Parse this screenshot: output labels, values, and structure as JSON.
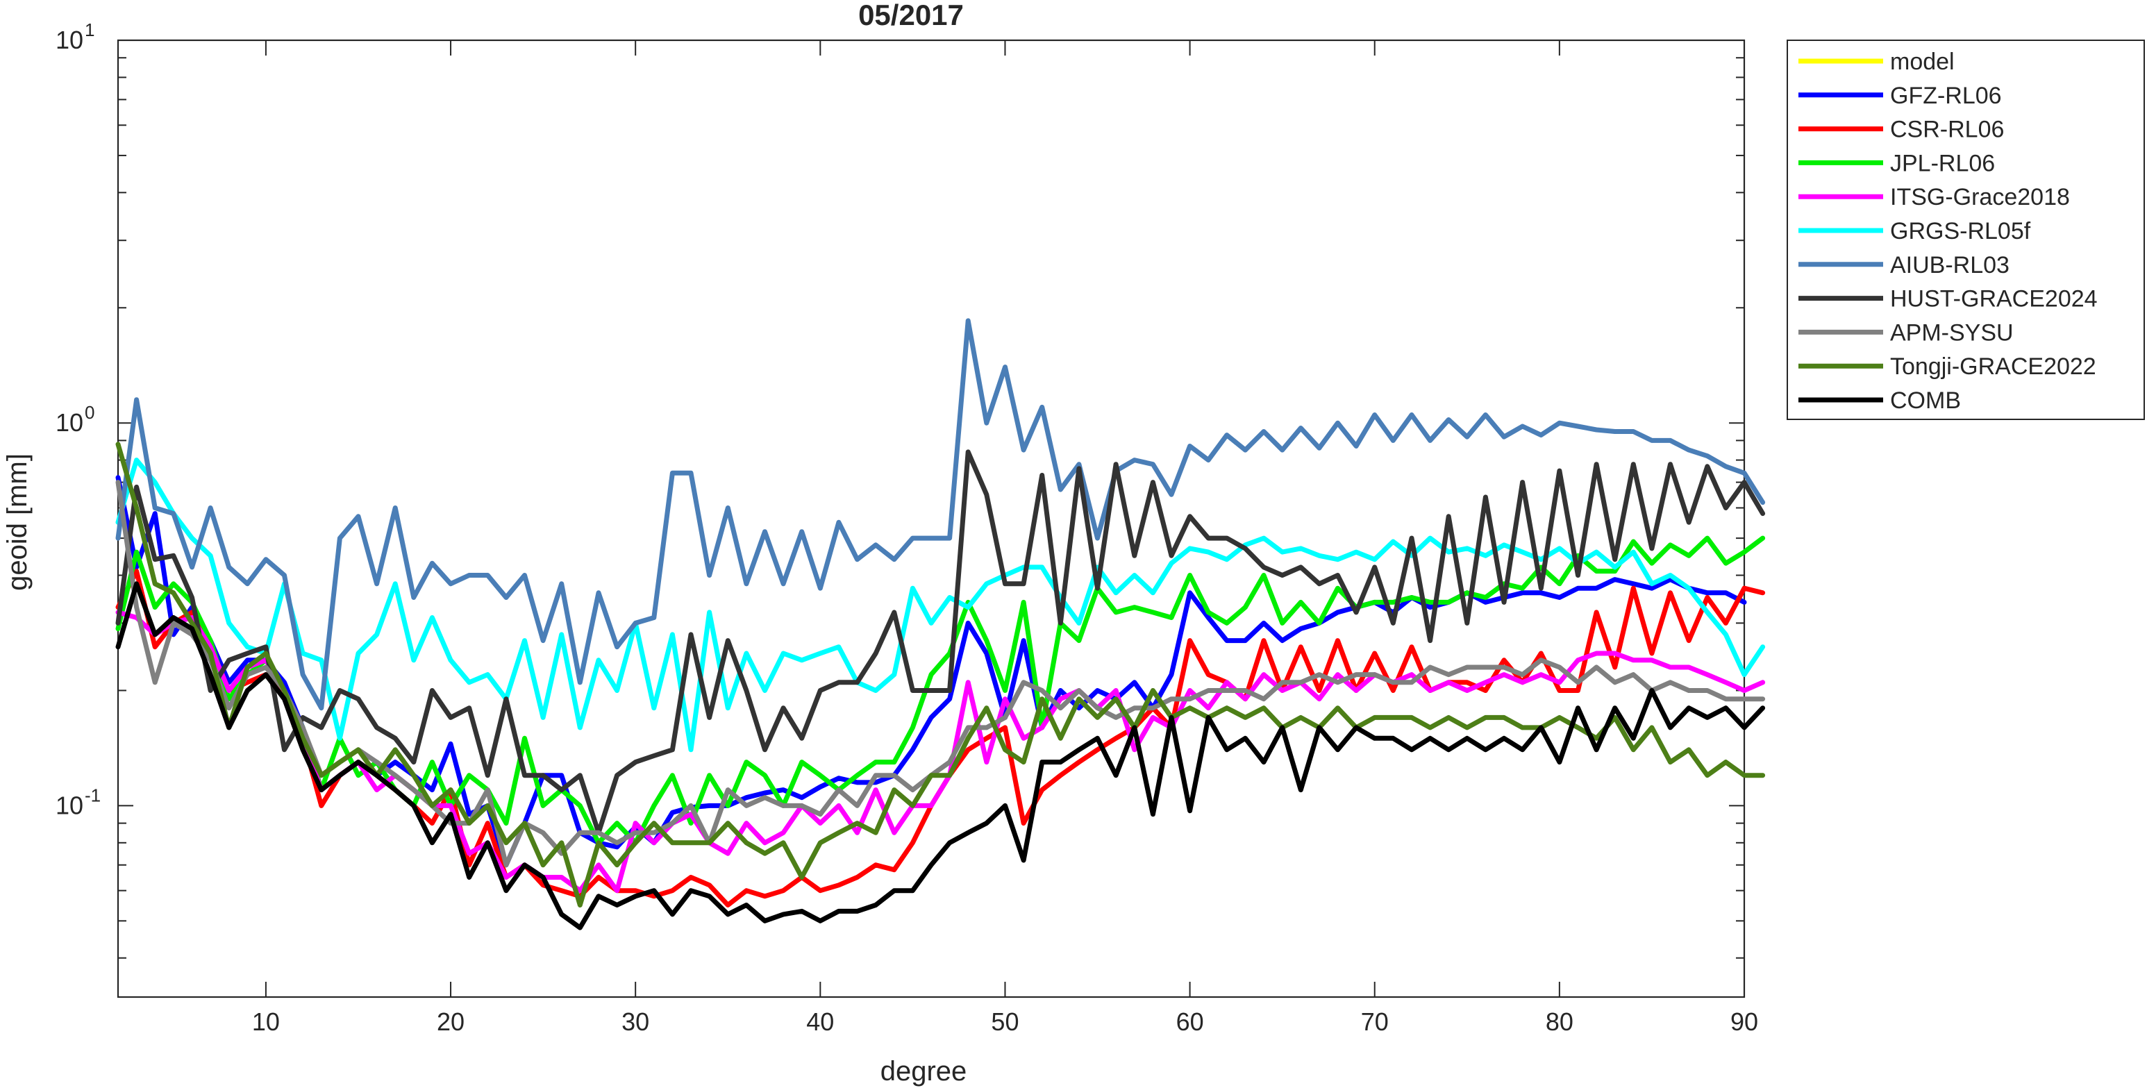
{
  "chart_data": {
    "type": "line",
    "title": "05/2017",
    "xlabel": "degree",
    "ylabel": "geoid [mm]",
    "xlim": [
      2,
      90
    ],
    "ylim": [
      0.03162,
      10
    ],
    "yscale": "log",
    "grid": false,
    "legend_location": "outside-top-right",
    "xticks": [
      10,
      20,
      30,
      40,
      50,
      60,
      70,
      80,
      90
    ],
    "yticks": [
      {
        "value": 0.1,
        "base": "10",
        "exp": "-1"
      },
      {
        "value": 1,
        "base": "10",
        "exp": "0"
      },
      {
        "value": 10,
        "base": "10",
        "exp": "1"
      }
    ],
    "x_start": 2,
    "series": [
      {
        "name": "model",
        "color": "#ffff00",
        "values": []
      },
      {
        "name": "GFZ-RL06",
        "color": "#0000ff",
        "values": [
          0.72,
          0.42,
          0.58,
          0.28,
          0.33,
          0.27,
          0.21,
          0.24,
          0.24,
          0.21,
          0.16,
          0.11,
          0.12,
          0.13,
          0.12,
          0.13,
          0.12,
          0.11,
          0.145,
          0.095,
          0.1,
          0.07,
          0.09,
          0.12,
          0.12,
          0.085,
          0.08,
          0.078,
          0.088,
          0.08,
          0.096,
          0.099,
          0.1,
          0.1,
          0.105,
          0.108,
          0.11,
          0.105,
          0.112,
          0.118,
          0.115,
          0.115,
          0.12,
          0.14,
          0.17,
          0.19,
          0.3,
          0.25,
          0.17,
          0.27,
          0.16,
          0.2,
          0.18,
          0.2,
          0.19,
          0.21,
          0.18,
          0.22,
          0.36,
          0.31,
          0.27,
          0.27,
          0.3,
          0.27,
          0.29,
          0.3,
          0.32,
          0.33,
          0.34,
          0.32,
          0.35,
          0.33,
          0.34,
          0.36,
          0.34,
          0.35,
          0.36,
          0.36,
          0.35,
          0.37,
          0.37,
          0.39,
          0.38,
          0.37,
          0.39,
          0.37,
          0.36,
          0.36,
          0.34
        ]
      },
      {
        "name": "CSR-RL06",
        "color": "#ff0000",
        "values": [
          0.33,
          0.41,
          0.26,
          0.3,
          0.32,
          0.26,
          0.2,
          0.21,
          0.22,
          0.2,
          0.15,
          0.1,
          0.12,
          0.13,
          0.12,
          0.11,
          0.1,
          0.09,
          0.11,
          0.07,
          0.09,
          0.065,
          0.07,
          0.062,
          0.06,
          0.058,
          0.065,
          0.06,
          0.06,
          0.058,
          0.06,
          0.065,
          0.062,
          0.055,
          0.06,
          0.058,
          0.06,
          0.065,
          0.06,
          0.062,
          0.065,
          0.07,
          0.068,
          0.08,
          0.1,
          0.12,
          0.14,
          0.15,
          0.16,
          0.09,
          0.11,
          0.12,
          0.13,
          0.14,
          0.15,
          0.16,
          0.18,
          0.16,
          0.27,
          0.22,
          0.21,
          0.19,
          0.27,
          0.2,
          0.26,
          0.2,
          0.27,
          0.2,
          0.25,
          0.2,
          0.26,
          0.2,
          0.21,
          0.21,
          0.2,
          0.24,
          0.21,
          0.25,
          0.2,
          0.2,
          0.32,
          0.23,
          0.37,
          0.25,
          0.36,
          0.27,
          0.35,
          0.3,
          0.37,
          0.36
        ]
      },
      {
        "name": "JPL-RL06",
        "color": "#00ee00",
        "values": [
          0.29,
          0.46,
          0.33,
          0.38,
          0.34,
          0.27,
          0.19,
          0.22,
          0.24,
          0.2,
          0.16,
          0.11,
          0.15,
          0.12,
          0.13,
          0.11,
          0.1,
          0.13,
          0.1,
          0.12,
          0.11,
          0.09,
          0.15,
          0.1,
          0.11,
          0.1,
          0.08,
          0.09,
          0.08,
          0.1,
          0.12,
          0.09,
          0.12,
          0.1,
          0.13,
          0.12,
          0.1,
          0.13,
          0.12,
          0.11,
          0.12,
          0.13,
          0.13,
          0.16,
          0.22,
          0.25,
          0.34,
          0.27,
          0.2,
          0.34,
          0.16,
          0.3,
          0.27,
          0.37,
          0.32,
          0.33,
          0.32,
          0.31,
          0.4,
          0.32,
          0.3,
          0.33,
          0.4,
          0.3,
          0.34,
          0.3,
          0.37,
          0.33,
          0.34,
          0.34,
          0.35,
          0.34,
          0.34,
          0.36,
          0.35,
          0.38,
          0.37,
          0.42,
          0.38,
          0.45,
          0.41,
          0.41,
          0.49,
          0.43,
          0.48,
          0.45,
          0.5,
          0.43,
          0.46,
          0.5
        ]
      },
      {
        "name": "ITSG-Grace2018",
        "color": "#ff00ff",
        "values": [
          0.32,
          0.31,
          0.28,
          0.3,
          0.31,
          0.26,
          0.2,
          0.23,
          0.24,
          0.2,
          0.15,
          0.11,
          0.12,
          0.13,
          0.11,
          0.12,
          0.11,
          0.1,
          0.1,
          0.075,
          0.08,
          0.065,
          0.07,
          0.065,
          0.065,
          0.06,
          0.07,
          0.06,
          0.09,
          0.08,
          0.09,
          0.095,
          0.08,
          0.075,
          0.09,
          0.08,
          0.085,
          0.1,
          0.09,
          0.1,
          0.085,
          0.11,
          0.085,
          0.1,
          0.1,
          0.12,
          0.21,
          0.13,
          0.19,
          0.15,
          0.16,
          0.19,
          0.2,
          0.18,
          0.2,
          0.14,
          0.17,
          0.16,
          0.2,
          0.18,
          0.21,
          0.19,
          0.22,
          0.2,
          0.21,
          0.19,
          0.22,
          0.2,
          0.22,
          0.21,
          0.22,
          0.2,
          0.21,
          0.2,
          0.21,
          0.22,
          0.21,
          0.22,
          0.21,
          0.24,
          0.25,
          0.25,
          0.24,
          0.24,
          0.23,
          0.23,
          0.22,
          0.21,
          0.2,
          0.21
        ]
      },
      {
        "name": "GRGS-RL05f",
        "color": "#00ffff",
        "values": [
          0.55,
          0.8,
          0.7,
          0.58,
          0.5,
          0.45,
          0.3,
          0.26,
          0.25,
          0.38,
          0.25,
          0.24,
          0.15,
          0.25,
          0.28,
          0.38,
          0.24,
          0.31,
          0.24,
          0.21,
          0.22,
          0.19,
          0.27,
          0.17,
          0.28,
          0.16,
          0.24,
          0.2,
          0.3,
          0.18,
          0.28,
          0.14,
          0.32,
          0.18,
          0.25,
          0.2,
          0.25,
          0.24,
          0.25,
          0.26,
          0.21,
          0.2,
          0.22,
          0.37,
          0.3,
          0.35,
          0.33,
          0.38,
          0.4,
          0.42,
          0.42,
          0.35,
          0.3,
          0.42,
          0.36,
          0.4,
          0.36,
          0.43,
          0.47,
          0.46,
          0.44,
          0.48,
          0.5,
          0.46,
          0.47,
          0.45,
          0.44,
          0.46,
          0.44,
          0.49,
          0.45,
          0.5,
          0.46,
          0.47,
          0.45,
          0.48,
          0.46,
          0.44,
          0.47,
          0.43,
          0.46,
          0.42,
          0.46,
          0.38,
          0.4,
          0.37,
          0.32,
          0.28,
          0.22,
          0.26
        ]
      },
      {
        "name": "AIUB-RL03",
        "color": "#4a7eb7",
        "values": [
          0.5,
          1.15,
          0.6,
          0.58,
          0.42,
          0.6,
          0.42,
          0.38,
          0.44,
          0.4,
          0.22,
          0.18,
          0.5,
          0.57,
          0.38,
          0.6,
          0.35,
          0.43,
          0.38,
          0.4,
          0.4,
          0.35,
          0.4,
          0.27,
          0.38,
          0.21,
          0.36,
          0.26,
          0.3,
          0.31,
          0.74,
          0.74,
          0.4,
          0.6,
          0.38,
          0.52,
          0.38,
          0.52,
          0.37,
          0.55,
          0.44,
          0.48,
          0.44,
          0.5,
          0.5,
          0.5,
          1.85,
          1.0,
          1.4,
          0.85,
          1.1,
          0.67,
          0.78,
          0.5,
          0.75,
          0.8,
          0.78,
          0.65,
          0.87,
          0.8,
          0.93,
          0.85,
          0.95,
          0.85,
          0.97,
          0.86,
          1.0,
          0.87,
          1.05,
          0.9,
          1.05,
          0.9,
          1.02,
          0.92,
          1.05,
          0.92,
          0.98,
          0.93,
          1.0,
          0.98,
          0.96,
          0.95,
          0.95,
          0.9,
          0.9,
          0.85,
          0.82,
          0.77,
          0.74,
          0.62
        ]
      },
      {
        "name": "HUST-GRACE2024",
        "color": "#333333",
        "values": [
          0.3,
          0.68,
          0.44,
          0.45,
          0.35,
          0.2,
          0.24,
          0.25,
          0.26,
          0.14,
          0.17,
          0.16,
          0.2,
          0.19,
          0.16,
          0.15,
          0.13,
          0.2,
          0.17,
          0.18,
          0.12,
          0.19,
          0.12,
          0.12,
          0.11,
          0.12,
          0.085,
          0.12,
          0.13,
          0.135,
          0.14,
          0.28,
          0.17,
          0.27,
          0.2,
          0.14,
          0.18,
          0.15,
          0.2,
          0.21,
          0.21,
          0.25,
          0.32,
          0.2,
          0.2,
          0.2,
          0.84,
          0.65,
          0.38,
          0.38,
          0.73,
          0.3,
          0.76,
          0.37,
          0.78,
          0.45,
          0.7,
          0.45,
          0.57,
          0.5,
          0.5,
          0.47,
          0.42,
          0.4,
          0.42,
          0.38,
          0.4,
          0.32,
          0.42,
          0.3,
          0.5,
          0.27,
          0.57,
          0.3,
          0.64,
          0.34,
          0.7,
          0.37,
          0.75,
          0.4,
          0.78,
          0.44,
          0.78,
          0.47,
          0.78,
          0.55,
          0.77,
          0.6,
          0.7,
          0.58
        ]
      },
      {
        "name": "APM-SYSU",
        "color": "#808080",
        "values": [
          0.7,
          0.33,
          0.21,
          0.3,
          0.28,
          0.24,
          0.18,
          0.22,
          0.23,
          0.2,
          0.16,
          0.12,
          0.13,
          0.14,
          0.13,
          0.12,
          0.11,
          0.1,
          0.09,
          0.09,
          0.11,
          0.07,
          0.09,
          0.085,
          0.075,
          0.085,
          0.085,
          0.08,
          0.085,
          0.085,
          0.09,
          0.1,
          0.08,
          0.11,
          0.1,
          0.105,
          0.1,
          0.1,
          0.095,
          0.11,
          0.1,
          0.12,
          0.12,
          0.11,
          0.12,
          0.13,
          0.16,
          0.16,
          0.17,
          0.21,
          0.2,
          0.18,
          0.2,
          0.18,
          0.17,
          0.18,
          0.18,
          0.19,
          0.19,
          0.2,
          0.2,
          0.2,
          0.19,
          0.21,
          0.21,
          0.22,
          0.21,
          0.22,
          0.22,
          0.21,
          0.21,
          0.23,
          0.22,
          0.23,
          0.23,
          0.23,
          0.22,
          0.24,
          0.23,
          0.21,
          0.23,
          0.21,
          0.22,
          0.2,
          0.21,
          0.2,
          0.2,
          0.19,
          0.19,
          0.19
        ]
      },
      {
        "name": "Tongji-GRACE2022",
        "color": "#4d7f17",
        "values": [
          0.88,
          0.6,
          0.38,
          0.36,
          0.3,
          0.25,
          0.16,
          0.23,
          0.25,
          0.2,
          0.15,
          0.12,
          0.13,
          0.14,
          0.12,
          0.14,
          0.12,
          0.1,
          0.11,
          0.09,
          0.1,
          0.08,
          0.09,
          0.07,
          0.08,
          0.055,
          0.08,
          0.07,
          0.08,
          0.09,
          0.08,
          0.08,
          0.08,
          0.09,
          0.08,
          0.075,
          0.08,
          0.065,
          0.08,
          0.085,
          0.09,
          0.085,
          0.11,
          0.1,
          0.12,
          0.12,
          0.15,
          0.18,
          0.14,
          0.13,
          0.19,
          0.15,
          0.19,
          0.17,
          0.19,
          0.16,
          0.2,
          0.17,
          0.18,
          0.17,
          0.18,
          0.17,
          0.18,
          0.16,
          0.17,
          0.16,
          0.18,
          0.16,
          0.17,
          0.17,
          0.17,
          0.16,
          0.17,
          0.16,
          0.17,
          0.17,
          0.16,
          0.16,
          0.17,
          0.16,
          0.15,
          0.17,
          0.14,
          0.16,
          0.13,
          0.14,
          0.12,
          0.13,
          0.12,
          0.12
        ]
      },
      {
        "name": "COMB",
        "color": "#000000",
        "values": [
          0.26,
          0.38,
          0.28,
          0.31,
          0.29,
          0.22,
          0.16,
          0.2,
          0.22,
          0.19,
          0.14,
          0.11,
          0.12,
          0.13,
          0.12,
          0.11,
          0.1,
          0.08,
          0.095,
          0.065,
          0.08,
          0.06,
          0.07,
          0.065,
          0.052,
          0.048,
          0.058,
          0.055,
          0.058,
          0.06,
          0.052,
          0.06,
          0.058,
          0.052,
          0.055,
          0.05,
          0.052,
          0.053,
          0.05,
          0.053,
          0.053,
          0.055,
          0.06,
          0.06,
          0.07,
          0.08,
          0.085,
          0.09,
          0.1,
          0.072,
          0.13,
          0.13,
          0.14,
          0.15,
          0.12,
          0.16,
          0.095,
          0.17,
          0.097,
          0.17,
          0.14,
          0.15,
          0.13,
          0.16,
          0.11,
          0.16,
          0.14,
          0.16,
          0.15,
          0.15,
          0.14,
          0.15,
          0.14,
          0.15,
          0.14,
          0.15,
          0.14,
          0.16,
          0.13,
          0.18,
          0.14,
          0.18,
          0.15,
          0.2,
          0.16,
          0.18,
          0.17,
          0.18,
          0.16,
          0.18
        ]
      }
    ]
  }
}
